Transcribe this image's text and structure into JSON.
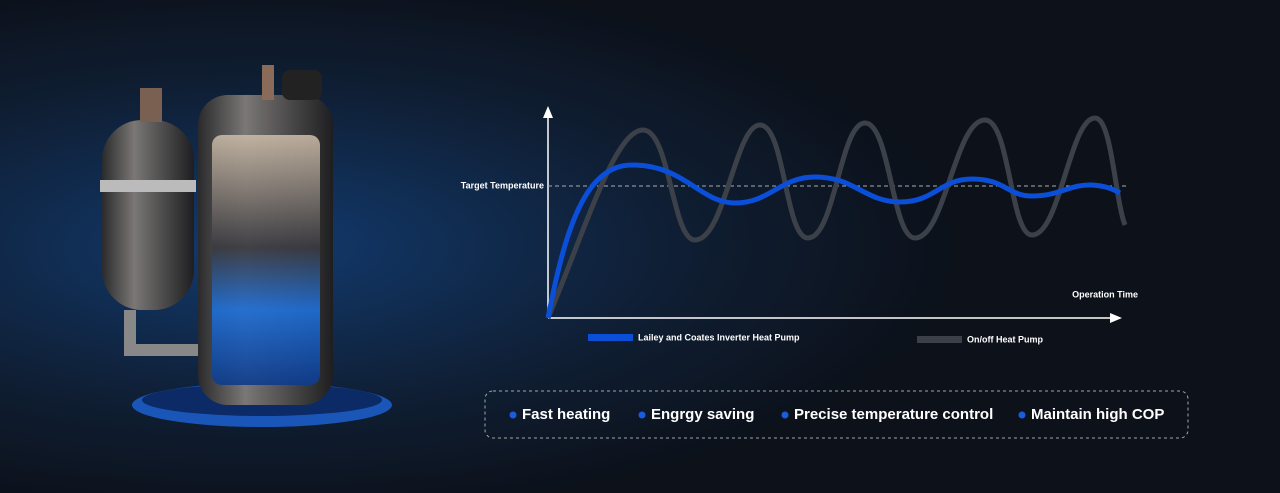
{
  "diagram": {
    "y_axis_label": "Target Temperature",
    "x_axis_label": "Operation Time",
    "legend": [
      {
        "label": "Lailey and Coates Inverter Heat Pump",
        "color": "#0b4fd8"
      },
      {
        "label": "On/off Heat Pump",
        "color": "#3c4048"
      }
    ]
  },
  "features": [
    "Fast heating",
    "Engrgy saving",
    "Precise temperature control",
    "Maintain high COP"
  ]
}
